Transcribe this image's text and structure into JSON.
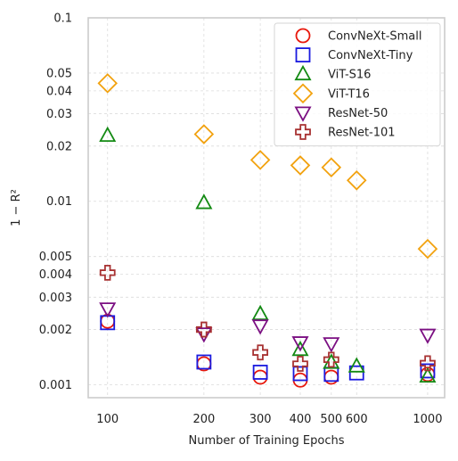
{
  "chart_data": {
    "type": "scatter",
    "title": "",
    "xlabel": "Number of Training Epochs",
    "ylabel": "1 − R²",
    "xscale": "log",
    "yscale": "log",
    "xlim": [
      87,
      1130
    ],
    "ylim": [
      0.00085,
      0.1
    ],
    "x_ticks": [
      100,
      200,
      300,
      400,
      500,
      600,
      1000
    ],
    "x_tick_labels": [
      "100",
      "200",
      "300",
      "400",
      "500",
      "600",
      "1000"
    ],
    "y_ticks": [
      0.1,
      0.05,
      0.04,
      0.03,
      0.02,
      0.01,
      0.005,
      0.004,
      0.003,
      0.002,
      0.001
    ],
    "y_tick_labels": [
      "0.1",
      "0.05",
      "0.04",
      "0.03",
      "0.02",
      "0.01",
      "0.005",
      "0.004",
      "0.003",
      "0.002",
      "0.001"
    ],
    "grid": true,
    "legend_position": "top-right",
    "series": [
      {
        "name": "ConvNeXt-Small",
        "marker": "circle",
        "color": "#e8180c",
        "points": [
          [
            100,
            0.00222
          ],
          [
            200,
            0.0013
          ],
          [
            300,
            0.0011
          ],
          [
            400,
            0.00106
          ],
          [
            500,
            0.0011
          ],
          [
            1000,
            0.00114
          ]
        ]
      },
      {
        "name": "ConvNeXt-Tiny",
        "marker": "square",
        "color": "#1a1adf",
        "points": [
          [
            100,
            0.00218
          ],
          [
            200,
            0.00133
          ],
          [
            300,
            0.00117
          ],
          [
            400,
            0.00115
          ],
          [
            500,
            0.00114
          ],
          [
            600,
            0.00116
          ],
          [
            1000,
            0.00119
          ]
        ]
      },
      {
        "name": "ViT-S16",
        "marker": "triangle-up",
        "color": "#138a13",
        "points": [
          [
            100,
            0.0228
          ],
          [
            200,
            0.0098
          ],
          [
            300,
            0.00243
          ],
          [
            400,
            0.00155
          ],
          [
            500,
            0.00132
          ],
          [
            600,
            0.00126
          ],
          [
            1000,
            0.00111
          ]
        ]
      },
      {
        "name": "ViT-T16",
        "marker": "diamond",
        "color": "#f2a20f",
        "points": [
          [
            100,
            0.044
          ],
          [
            200,
            0.0232
          ],
          [
            300,
            0.0168
          ],
          [
            400,
            0.0157
          ],
          [
            500,
            0.0153
          ],
          [
            600,
            0.013
          ],
          [
            1000,
            0.0055
          ]
        ]
      },
      {
        "name": "ResNet-50",
        "marker": "triangle-down",
        "color": "#7b0f82",
        "points": [
          [
            100,
            0.0026
          ],
          [
            200,
            0.0019
          ],
          [
            300,
            0.0021
          ],
          [
            400,
            0.0017
          ],
          [
            500,
            0.00168
          ],
          [
            1000,
            0.00187
          ]
        ]
      },
      {
        "name": "ResNet-101",
        "marker": "plus",
        "color": "#a83232",
        "points": [
          [
            100,
            0.00408
          ],
          [
            200,
            0.002
          ],
          [
            300,
            0.0015
          ],
          [
            400,
            0.0013
          ],
          [
            500,
            0.00137
          ],
          [
            1000,
            0.00131
          ]
        ]
      }
    ]
  }
}
